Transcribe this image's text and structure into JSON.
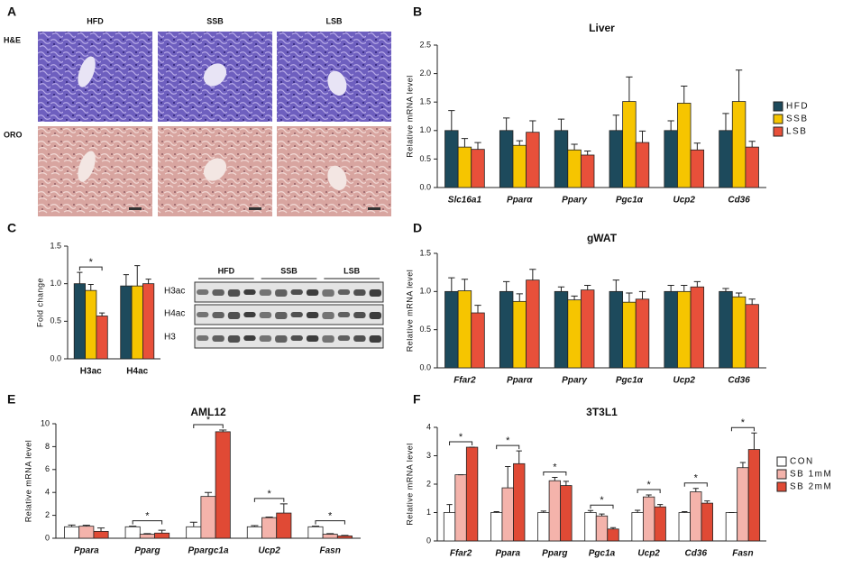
{
  "panel_labels": [
    "A",
    "B",
    "C",
    "D",
    "E",
    "F"
  ],
  "histology": {
    "columns": [
      "HFD",
      "SSB",
      "LSB"
    ],
    "rows": [
      "H&E",
      "ORO"
    ]
  },
  "blot": {
    "groups": [
      "HFD",
      "SSB",
      "LSB"
    ],
    "rows": [
      "H3ac",
      "H4ac",
      "H3"
    ]
  },
  "chart_data": [
    {
      "type": "bar",
      "title": "Liver",
      "y_label": "Relative mRNA level",
      "category_style": "italic",
      "legend": "right",
      "categories": [
        "Slc16a1",
        "Pparα",
        "Pparγ",
        "Pgc1α",
        "Ucp2",
        "Cd36"
      ],
      "ylim": [
        0,
        2.5
      ],
      "yticks": [
        {
          "value": 0,
          "label": "0.0"
        },
        {
          "value": 0.5,
          "label": "0.5"
        },
        {
          "value": 1,
          "label": "1.0"
        },
        {
          "value": 1.5,
          "label": "1.5"
        },
        {
          "value": 2,
          "label": "2.0"
        },
        {
          "value": 2.5,
          "label": "2.5"
        }
      ],
      "series": [
        {
          "name": "HFD",
          "color": "#1d4a5c",
          "values": [
            1.0,
            1.0,
            1.0,
            1.0,
            1.0,
            1.0
          ],
          "errors": [
            0.35,
            0.22,
            0.2,
            0.27,
            0.17,
            0.3
          ]
        },
        {
          "name": "SSB",
          "color": "#f6c500",
          "values": [
            0.71,
            0.74,
            0.66,
            1.51,
            1.48,
            1.51
          ],
          "errors": [
            0.15,
            0.08,
            0.1,
            0.43,
            0.3,
            0.55
          ]
        },
        {
          "name": "LSB",
          "color": "#e8503a",
          "values": [
            0.67,
            0.97,
            0.57,
            0.79,
            0.66,
            0.71
          ],
          "errors": [
            0.12,
            0.2,
            0.07,
            0.2,
            0.12,
            0.1
          ]
        }
      ]
    },
    {
      "type": "bar",
      "y_label": "Fold change",
      "categories": [
        "H3ac",
        "H4ac"
      ],
      "ylim": [
        0,
        1.5
      ],
      "yticks": [
        {
          "value": 0,
          "label": "0.0"
        },
        {
          "value": 0.5,
          "label": "0.5"
        },
        {
          "value": 1,
          "label": "1.0"
        },
        {
          "value": 1.5,
          "label": "1.5"
        }
      ],
      "significance": [
        "*",
        null
      ],
      "series": [
        {
          "color": "#1d4a5c",
          "values": [
            1.0,
            0.97
          ],
          "errors": [
            0.15,
            0.15
          ]
        },
        {
          "color": "#f6c500",
          "values": [
            0.91,
            0.97
          ],
          "errors": [
            0.08,
            0.27
          ]
        },
        {
          "color": "#e8503a",
          "values": [
            0.57,
            1.0
          ],
          "errors": [
            0.04,
            0.06
          ]
        }
      ]
    },
    {
      "type": "bar",
      "title": "gWAT",
      "y_label": "Relative mRNA level",
      "category_style": "italic",
      "categories": [
        "Ffar2",
        "Pparα",
        "Pparγ",
        "Pgc1α",
        "Ucp2",
        "Cd36"
      ],
      "ylim": [
        0,
        1.5
      ],
      "yticks": [
        {
          "value": 0,
          "label": "0.0"
        },
        {
          "value": 0.5,
          "label": "0.5"
        },
        {
          "value": 1,
          "label": "1.0"
        },
        {
          "value": 1.5,
          "label": "1.5"
        }
      ],
      "series": [
        {
          "color": "#1d4a5c",
          "values": [
            1.0,
            1.0,
            1.0,
            1.0,
            1.0,
            1.0
          ],
          "errors": [
            0.18,
            0.13,
            0.06,
            0.15,
            0.08,
            0.04
          ]
        },
        {
          "color": "#f6c500",
          "values": [
            1.01,
            0.87,
            0.89,
            0.86,
            1.0,
            0.93
          ],
          "errors": [
            0.15,
            0.1,
            0.05,
            0.12,
            0.08,
            0.05
          ]
        },
        {
          "color": "#e8503a",
          "values": [
            0.72,
            1.15,
            1.02,
            0.9,
            1.06,
            0.83
          ],
          "errors": [
            0.1,
            0.14,
            0.06,
            0.1,
            0.07,
            0.07
          ]
        }
      ]
    },
    {
      "type": "bar",
      "title": "AML12",
      "y_label": "Relative mRNA level",
      "category_style": "italic",
      "categories": [
        "Ppara",
        "Pparg",
        "Ppargc1a",
        "Ucp2",
        "Fasn"
      ],
      "ylim": [
        0,
        10
      ],
      "yticks": [
        0,
        2,
        4,
        6,
        8,
        10
      ],
      "significance": [
        null,
        "*",
        "*",
        "*",
        "*"
      ],
      "series": [
        {
          "color": "#ffffff",
          "values": [
            1.0,
            1.0,
            1.0,
            1.0,
            1.0
          ],
          "errors": [
            0.15,
            0.05,
            0.4,
            0.1,
            0.05
          ]
        },
        {
          "color": "#f4b3ab",
          "values": [
            1.05,
            0.35,
            3.65,
            1.8,
            0.35
          ],
          "errors": [
            0.08,
            0.05,
            0.35,
            0.05,
            0.05
          ]
        },
        {
          "color": "#e04a35",
          "values": [
            0.6,
            0.45,
            9.3,
            2.2,
            0.2
          ],
          "errors": [
            0.3,
            0.25,
            0.15,
            0.8,
            0.05
          ]
        }
      ]
    },
    {
      "type": "bar",
      "title": "3T3L1",
      "y_label": "Relative mRNA level",
      "category_style": "italic",
      "legend": "right",
      "categories": [
        "Ffar2",
        "Ppara",
        "Pparg",
        "Pgc1a",
        "Ucp2",
        "Cd36",
        "Fasn"
      ],
      "ylim": [
        0,
        4
      ],
      "yticks": [
        0,
        1,
        2,
        3,
        4
      ],
      "significance": [
        "*",
        "*",
        "*",
        "*",
        "*",
        "*",
        "*"
      ],
      "series": [
        {
          "name": "CON",
          "color": "#ffffff",
          "values": [
            1.0,
            1.0,
            1.0,
            1.0,
            1.0,
            1.0,
            1.0
          ],
          "errors": [
            0.28,
            0.03,
            0.05,
            0.07,
            0.08,
            0.03,
            0
          ]
        },
        {
          "name": "SB 1mM",
          "color": "#f4b3ab",
          "values": [
            2.33,
            1.87,
            2.12,
            0.88,
            1.55,
            1.73,
            2.58
          ],
          "errors": [
            0,
            0.75,
            0.12,
            0.07,
            0.07,
            0.12,
            0.18
          ]
        },
        {
          "name": "SB 2mM",
          "color": "#e04a35",
          "values": [
            3.3,
            2.72,
            1.95,
            0.42,
            1.2,
            1.33,
            3.22
          ],
          "errors": [
            0,
            0.45,
            0.15,
            0.05,
            0.08,
            0.08,
            0.58
          ]
        }
      ]
    }
  ]
}
